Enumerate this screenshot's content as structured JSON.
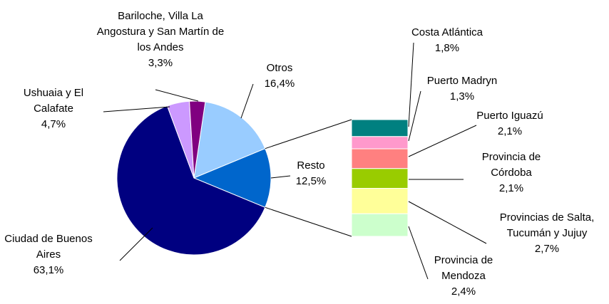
{
  "chart_data": {
    "type": "pie",
    "categories": [
      "Otros",
      "Resto",
      "Ciudad de Buenos Aires",
      "Ushuaia y El Calafate",
      "Bariloche, Villa La Angostura y San Martín de los Andes"
    ],
    "values": [
      16.4,
      12.5,
      63.1,
      4.7,
      3.3
    ],
    "value_labels": [
      "16,4%",
      "12,5%",
      "63,1%",
      "4,7%",
      "3,3%"
    ],
    "colors": [
      "#99ccff",
      "#0066cc",
      "#000080",
      "#cc99ff",
      "#800080"
    ],
    "breakdown": {
      "categories": [
        "Costa Atlántica",
        "Puerto Madryn",
        "Puerto Iguazú",
        "Provincia de Córdoba",
        "Provincias de Salta, Tucumán y Jujuy",
        "Provincia de Mendoza"
      ],
      "values": [
        1.8,
        1.3,
        2.1,
        2.1,
        2.7,
        2.4
      ],
      "value_labels": [
        "1,8%",
        "1,3%",
        "2,1%",
        "2,1%",
        "2,7%",
        "2,4%"
      ],
      "colors": [
        "#008080",
        "#ff99cc",
        "#ff8080",
        "#99cc00",
        "#ffff99",
        "#ccffcc"
      ]
    }
  }
}
